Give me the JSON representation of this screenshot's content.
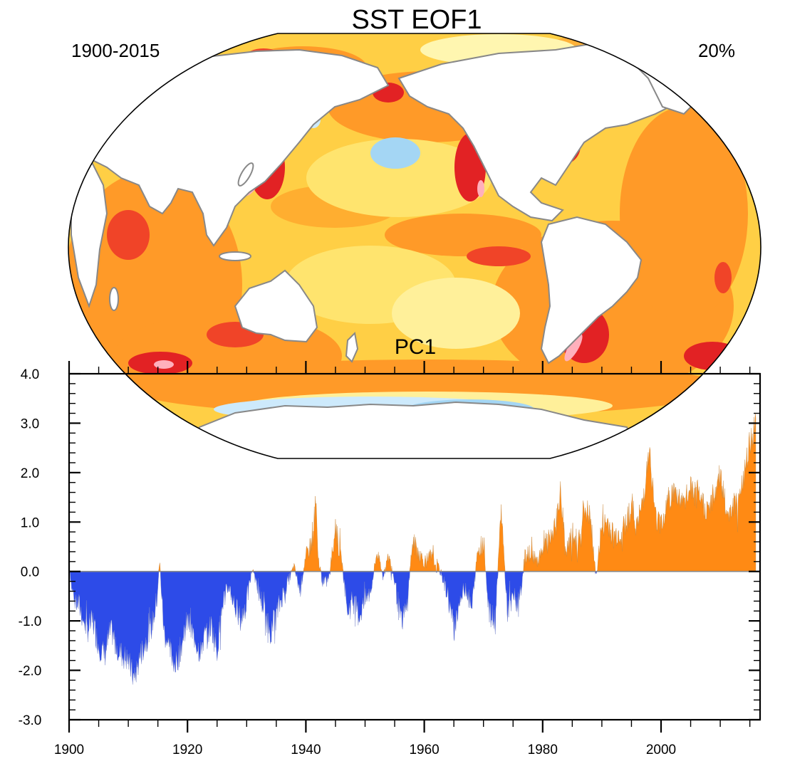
{
  "figure": {
    "title": "SST EOF1",
    "period": "1900-2015",
    "variance": "20%",
    "pc_label": "PC1"
  },
  "colors": {
    "positive": "#ff8a14",
    "negative": "#2d4be8",
    "zero_line": "#888888",
    "coast": "#888888",
    "map_palette": [
      "#fff7a8",
      "#ffe26a",
      "#ffc23a",
      "#ff9f28",
      "#ff7a1c",
      "#f04428",
      "#e22224",
      "#ffb0bc"
    ],
    "map_negative": [
      "#cdeafc",
      "#a4d6f4",
      "#5ab4ea",
      "#2d9ddf"
    ]
  },
  "chart_data": [
    {
      "type": "map",
      "title": "SST EOF1",
      "left_label": "1900-2015",
      "right_label": "20%",
      "projection": "Robinson (Pacific-centred)",
      "description_values": "EOF loading field; mostly positive (warming) everywhere with strongest values in western boundary currents, Southern Ocean 40-50S and North Atlantic; weak negative patches in central North Pacific, Southern Ocean near Antarctica and Labrador Sea"
    },
    {
      "type": "area",
      "title": "PC1",
      "xlabel": "",
      "ylabel": "",
      "xlim": [
        1900,
        2016
      ],
      "ylim": [
        -3.0,
        4.0
      ],
      "x_major_ticks": [
        1900,
        1920,
        1940,
        1960,
        1980,
        2000
      ],
      "x_tick_labels": [
        "1900",
        "1920",
        "1940",
        "1960",
        "1980",
        "2000"
      ],
      "y_major_ticks": [
        -3.0,
        -2.0,
        -1.0,
        0.0,
        1.0,
        2.0,
        3.0,
        4.0
      ],
      "y_tick_labels": [
        "-3.0",
        "-2.0",
        "-1.0",
        "0.0",
        "1.0",
        "2.0",
        "3.0",
        "4.0"
      ],
      "positive_color": "#ff8a14",
      "negative_color": "#2d4be8",
      "series_anchor_points": [
        [
          1900.0,
          0.2
        ],
        [
          1900.5,
          -0.4
        ],
        [
          1901,
          -0.5
        ],
        [
          1902,
          -0.8
        ],
        [
          1903,
          -1.2
        ],
        [
          1904,
          -1.0
        ],
        [
          1905,
          -1.5
        ],
        [
          1906,
          -1.7
        ],
        [
          1907,
          -1.2
        ],
        [
          1908,
          -1.5
        ],
        [
          1909,
          -1.7
        ],
        [
          1910,
          -1.8
        ],
        [
          1911,
          -2.2
        ],
        [
          1912,
          -1.7
        ],
        [
          1913,
          -1.4
        ],
        [
          1914,
          -1.1
        ],
        [
          1914.8,
          -0.6
        ],
        [
          1915.3,
          0.2
        ],
        [
          1916,
          -1.2
        ],
        [
          1917,
          -1.6
        ],
        [
          1918,
          -1.9
        ],
        [
          1919,
          -1.5
        ],
        [
          1920,
          -1.0
        ],
        [
          1921,
          -1.3
        ],
        [
          1922,
          -1.6
        ],
        [
          1923,
          -1.3
        ],
        [
          1924,
          -1.1
        ],
        [
          1925,
          -1.6
        ],
        [
          1926,
          -0.6
        ],
        [
          1927,
          -0.3
        ],
        [
          1928,
          -0.7
        ],
        [
          1929,
          -1.0
        ],
        [
          1930,
          -0.6
        ],
        [
          1931,
          0.1
        ],
        [
          1932,
          -0.4
        ],
        [
          1933,
          -0.8
        ],
        [
          1934,
          -1.2
        ],
        [
          1935,
          -0.9
        ],
        [
          1936,
          -0.5
        ],
        [
          1937,
          -0.2
        ],
        [
          1938,
          0.1
        ],
        [
          1939,
          -0.4
        ],
        [
          1940,
          0.3
        ],
        [
          1941,
          0.6
        ],
        [
          1941.7,
          1.4
        ],
        [
          1942,
          0.3
        ],
        [
          1943,
          -0.3
        ],
        [
          1944,
          -0.1
        ],
        [
          1945,
          1.0
        ],
        [
          1945.5,
          0.5
        ],
        [
          1946,
          0.3
        ],
        [
          1947,
          -0.8
        ],
        [
          1948,
          -0.6
        ],
        [
          1949,
          -0.9
        ],
        [
          1950,
          -0.6
        ],
        [
          1951,
          -0.4
        ],
        [
          1952,
          0.4
        ],
        [
          1953,
          -0.1
        ],
        [
          1954,
          0.3
        ],
        [
          1955,
          -0.2
        ],
        [
          1956,
          -1.0
        ],
        [
          1957,
          -0.8
        ],
        [
          1958,
          0.6
        ],
        [
          1959,
          0.4
        ],
        [
          1960,
          0.2
        ],
        [
          1961,
          0.3
        ],
        [
          1962,
          0.2
        ],
        [
          1963,
          -0.1
        ],
        [
          1964,
          -0.5
        ],
        [
          1965,
          -1.2
        ],
        [
          1966,
          -0.6
        ],
        [
          1967,
          -0.3
        ],
        [
          1968,
          -0.8
        ],
        [
          1969,
          0.4
        ],
        [
          1970,
          0.6
        ],
        [
          1971,
          -0.9
        ],
        [
          1972,
          -1.0
        ],
        [
          1973,
          1.3
        ],
        [
          1974,
          -0.8
        ],
        [
          1975,
          -0.5
        ],
        [
          1976,
          -0.7
        ],
        [
          1977,
          0.3
        ],
        [
          1978,
          0.4
        ],
        [
          1979,
          0.2
        ],
        [
          1980,
          0.5
        ],
        [
          1981,
          0.6
        ],
        [
          1982,
          0.8
        ],
        [
          1983,
          1.6
        ],
        [
          1984,
          0.4
        ],
        [
          1985,
          0.7
        ],
        [
          1986,
          0.6
        ],
        [
          1987,
          1.3
        ],
        [
          1988,
          1.1
        ],
        [
          1989,
          -0.1
        ],
        [
          1990,
          0.9
        ],
        [
          1991,
          1.0
        ],
        [
          1992,
          0.7
        ],
        [
          1993,
          0.8
        ],
        [
          1994,
          1.0
        ],
        [
          1995,
          1.3
        ],
        [
          1996,
          0.9
        ],
        [
          1997,
          1.5
        ],
        [
          1998,
          2.5
        ],
        [
          1999,
          1.1
        ],
        [
          2000,
          1.0
        ],
        [
          2001,
          1.4
        ],
        [
          2002,
          1.6
        ],
        [
          2003,
          1.5
        ],
        [
          2004,
          1.4
        ],
        [
          2005,
          1.7
        ],
        [
          2006,
          1.5
        ],
        [
          2007,
          1.4
        ],
        [
          2008,
          1.2
        ],
        [
          2009,
          1.6
        ],
        [
          2010,
          2.0
        ],
        [
          2011,
          1.2
        ],
        [
          2012,
          1.3
        ],
        [
          2013,
          1.5
        ],
        [
          2014,
          1.9
        ],
        [
          2015,
          2.6
        ],
        [
          2016,
          3.0
        ]
      ]
    }
  ]
}
